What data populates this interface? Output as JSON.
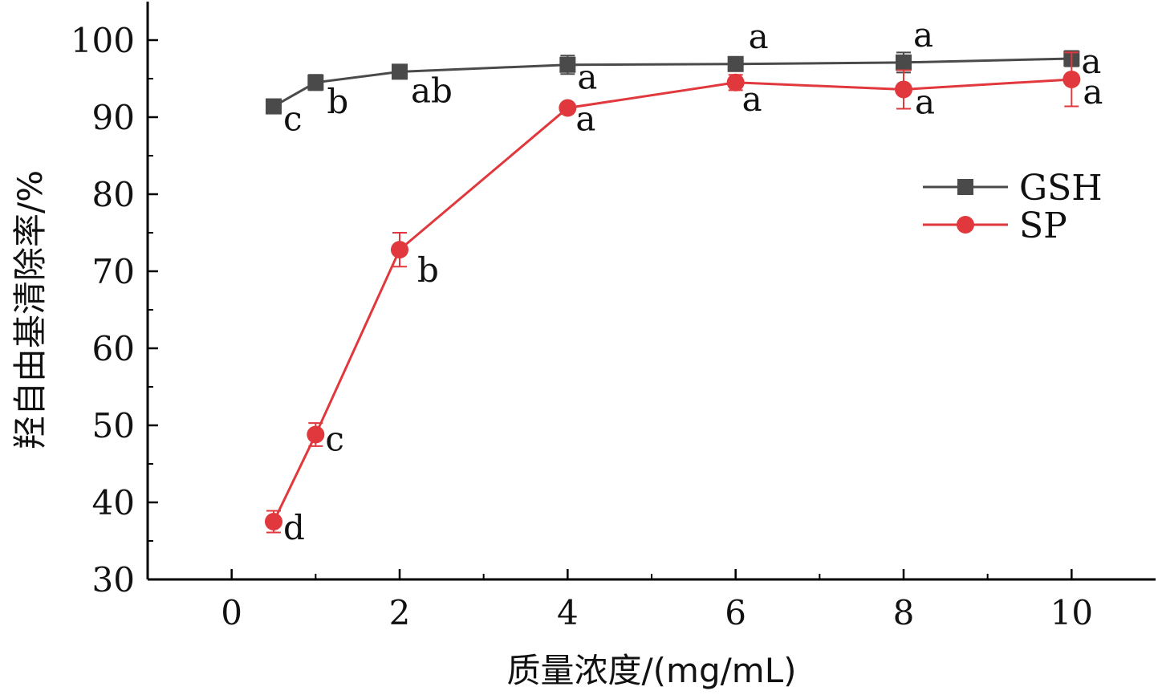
{
  "chart_data": {
    "type": "line",
    "xlabel": "质量浓度/(mg/mL)",
    "ylabel": "羟自由基清除率/%",
    "xlim": [
      -1,
      11
    ],
    "ylim": [
      30,
      105
    ],
    "x_ticks": [
      0,
      2,
      4,
      6,
      8,
      10
    ],
    "x_tick_labels": [
      "0",
      "2",
      "4",
      "6",
      "8",
      "10"
    ],
    "y_ticks": [
      30,
      40,
      50,
      60,
      70,
      80,
      90,
      100
    ],
    "y_tick_labels": [
      "30",
      "40",
      "50",
      "60",
      "70",
      "80",
      "90",
      "100"
    ],
    "grid": false,
    "legend_position": "right",
    "series": [
      {
        "name": "GSH",
        "color": "#4a4a4a",
        "marker": "square",
        "x": [
          0.5,
          1,
          2,
          4,
          6,
          8,
          10
        ],
        "values": [
          91.4,
          94.5,
          95.9,
          96.8,
          96.9,
          97.1,
          97.6
        ],
        "errors": [
          0.9,
          1.0,
          0.8,
          1.2,
          0.7,
          1.3,
          1.0
        ],
        "sig_labels": [
          "c",
          "b",
          "ab",
          "a",
          "a",
          "a",
          "a"
        ]
      },
      {
        "name": "SP",
        "color": "#e0383c",
        "marker": "circle",
        "x": [
          0.5,
          1,
          2,
          4,
          6,
          8,
          10
        ],
        "values": [
          37.5,
          48.8,
          72.8,
          91.2,
          94.5,
          93.6,
          94.9
        ],
        "errors": [
          1.4,
          1.5,
          2.2,
          0.5,
          1.0,
          2.5,
          3.5
        ],
        "sig_labels": [
          "d",
          "c",
          "b",
          "a",
          "a",
          "a",
          "a"
        ]
      }
    ]
  }
}
